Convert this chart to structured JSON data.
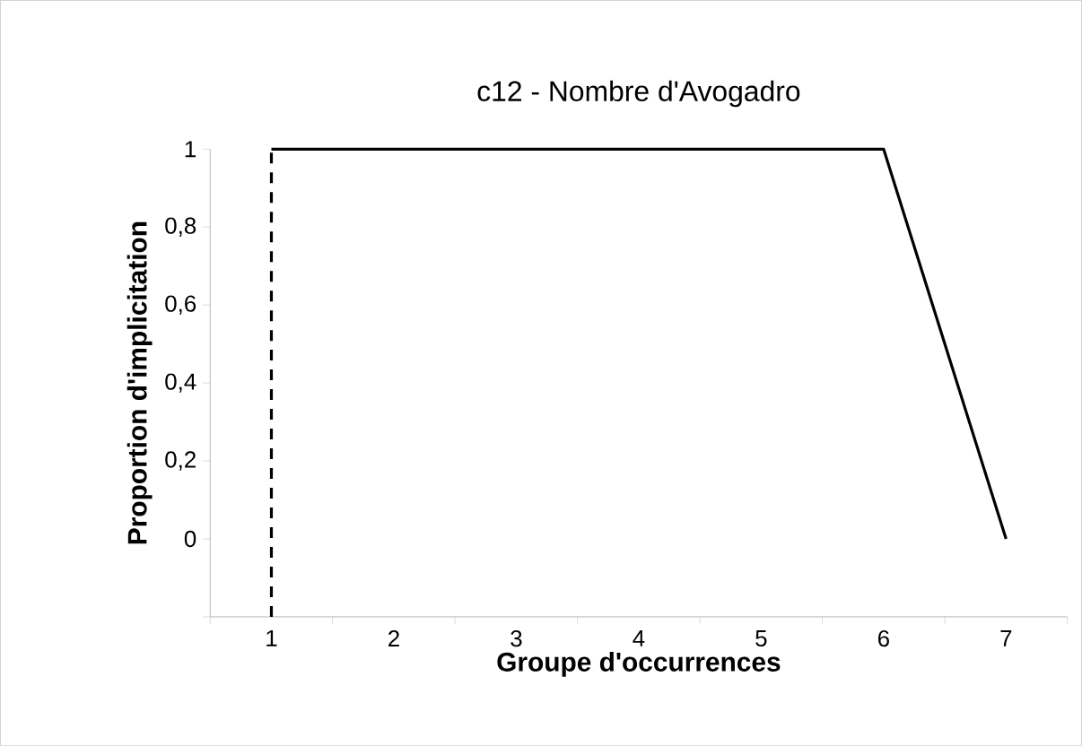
{
  "chart_data": {
    "type": "line",
    "title": "c12  - Nombre d'Avogadro",
    "xlabel": "Groupe d'occurrences",
    "ylabel": "Proportion d'implicitation",
    "x": [
      1,
      2,
      3,
      4,
      5,
      6,
      7
    ],
    "series": [
      {
        "color": "#000000",
        "values": [
          1,
          1,
          1,
          1,
          1,
          1,
          0
        ]
      }
    ],
    "xlim": [
      0.5,
      7.5
    ],
    "xticks": [
      1,
      2,
      3,
      4,
      5,
      6,
      7
    ],
    "ylim": [
      -0.2,
      1
    ],
    "yticks": [
      {
        "value": -0.2,
        "label": null
      },
      {
        "value": 0,
        "label": "0"
      },
      {
        "value": 0.2,
        "label": "0,2"
      },
      {
        "value": 0.4,
        "label": "0,4"
      },
      {
        "value": 0.6,
        "label": "0,6"
      },
      {
        "value": 0.8,
        "label": "0,8"
      },
      {
        "value": 1,
        "label": "1"
      }
    ],
    "ref_lines": [
      {
        "axis": "x",
        "value": 1,
        "color": "#000000",
        "line_style": "dashed"
      }
    ],
    "grid": false,
    "marker": "none",
    "line_style": "solid"
  }
}
